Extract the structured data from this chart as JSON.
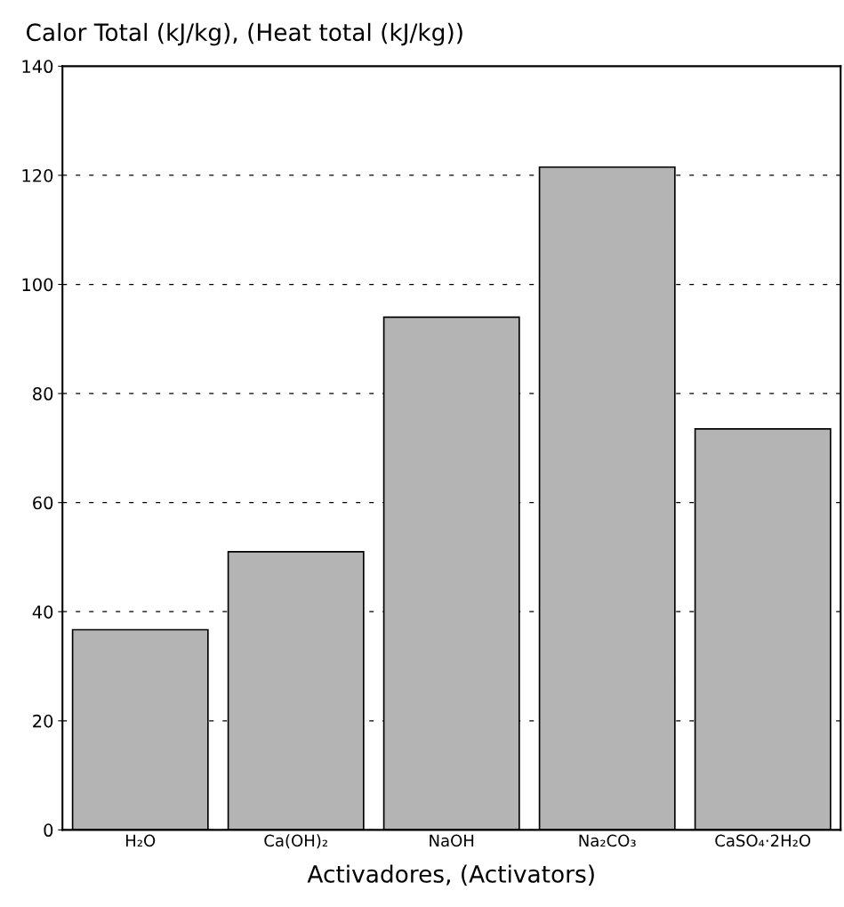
{
  "chart_data": {
    "type": "bar",
    "title": "Calor Total (kJ/kg), (Heat total (kJ/kg))",
    "xlabel": "Activadores, (Activators)",
    "categories": [
      "H₂O",
      "Ca(OH)₂",
      "NaOH",
      "Na₂CO₃",
      "CaSO₄·2H₂O"
    ],
    "values": [
      36.7,
      51,
      94,
      121.5,
      73.5
    ],
    "color": "#b4b4b4",
    "ylim": [
      0,
      140
    ],
    "yticks": [
      0,
      20,
      40,
      60,
      80,
      100,
      120,
      140
    ],
    "grid": "y",
    "legend": false
  }
}
